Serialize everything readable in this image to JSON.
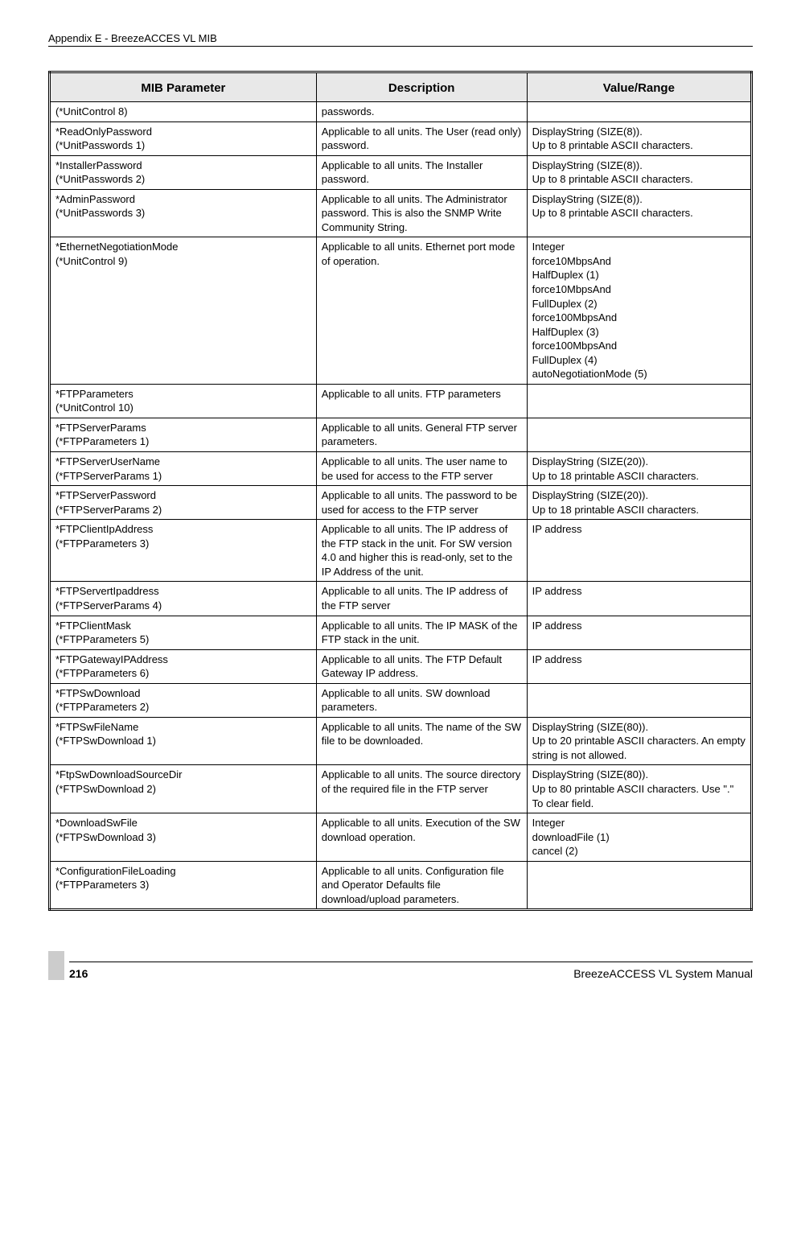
{
  "header": {
    "text": "Appendix E - BreezeACCES VL MIB"
  },
  "table": {
    "headers": [
      "MIB Parameter",
      "Description",
      "Value/Range"
    ],
    "rows": [
      {
        "param": "(*UnitControl 8)",
        "desc": "passwords.",
        "val": ""
      },
      {
        "param": "*ReadOnlyPassword\n(*UnitPasswords 1)",
        "desc": "Applicable to all units. The User (read only) password.",
        "val": "DisplayString (SIZE(8)).\nUp to 8 printable ASCII characters."
      },
      {
        "param": "*InstallerPassword\n(*UnitPasswords 2)",
        "desc": "Applicable to all units. The Installer password.",
        "val": "DisplayString (SIZE(8)).\nUp to 8 printable ASCII characters."
      },
      {
        "param": "*AdminPassword\n(*UnitPasswords 3)",
        "desc": "Applicable to all units. The Administrator password. This is also the SNMP Write Community String.",
        "val": "DisplayString (SIZE(8)).\nUp to 8 printable ASCII characters."
      },
      {
        "param": "*EthernetNegotiationMode\n(*UnitControl 9)",
        "desc": "Applicable to all units. Ethernet port mode of operation.",
        "val": "Integer\nforce10MbpsAnd\nHalfDuplex (1)\nforce10MbpsAnd\nFullDuplex (2)\nforce100MbpsAnd\nHalfDuplex (3)\nforce100MbpsAnd\nFullDuplex (4)\nautoNegotiationMode (5)"
      },
      {
        "param": "*FTPParameters\n(*UnitControl 10)",
        "desc": "Applicable to all units. FTP parameters",
        "val": ""
      },
      {
        "param": "*FTPServerParams\n(*FTPParameters 1)",
        "desc": "Applicable to all units. General FTP server parameters.",
        "val": ""
      },
      {
        "param": "*FTPServerUserName\n(*FTPServerParams 1)",
        "desc": "Applicable to all units. The user name to be used for access to the FTP server",
        "val": "DisplayString (SIZE(20)).\nUp to 18 printable ASCII characters."
      },
      {
        "param": "*FTPServerPassword\n(*FTPServerParams 2)",
        "desc": "Applicable to all units. The password to be used for access to the FTP server",
        "val": "DisplayString (SIZE(20)).\nUp to 18 printable ASCII characters."
      },
      {
        "param": "*FTPClientIpAddress\n(*FTPParameters 3)",
        "desc": "Applicable to all units. The IP address of the FTP stack in the unit. For SW version 4.0 and higher this is read-only, set to the IP Address of the unit.",
        "val": "IP address"
      },
      {
        "param": "*FTPServertIpaddress\n(*FTPServerParams 4)",
        "desc": "Applicable to all units. The IP address of the FTP server",
        "val": "IP address"
      },
      {
        "param": "*FTPClientMask\n(*FTPParameters 5)",
        "desc": "Applicable to all units. The IP MASK of the FTP stack in the unit.",
        "val": "IP address"
      },
      {
        "param": "*FTPGatewayIPAddress\n(*FTPParameters 6)",
        "desc": "Applicable to all units. The FTP Default Gateway IP address.",
        "val": "IP address"
      },
      {
        "param": "*FTPSwDownload\n(*FTPParameters 2)",
        "desc": "Applicable to all units. SW download parameters.",
        "val": ""
      },
      {
        "param": "*FTPSwFileName\n(*FTPSwDownload 1)",
        "desc": "Applicable to all units. The name of the SW file to be downloaded.",
        "val": "DisplayString (SIZE(80)).\nUp to 20 printable ASCII characters. An empty string is not allowed."
      },
      {
        "param": "*FtpSwDownloadSourceDir\n(*FTPSwDownload 2)",
        "desc": "Applicable to all units. The source directory of the required file in the FTP server",
        "val": "DisplayString (SIZE(80)).\nUp to 80 printable ASCII characters. Use \".\" To clear field."
      },
      {
        "param": "*DownloadSwFile\n(*FTPSwDownload 3)",
        "desc": "Applicable to all units. Execution of the SW download operation.",
        "val": "Integer\ndownloadFile (1)\ncancel (2)"
      },
      {
        "param": "*ConfigurationFileLoading\n(*FTPParameters 3)",
        "desc": "Applicable to all units. Configuration file and Operator Defaults file download/upload parameters.",
        "val": ""
      }
    ]
  },
  "footer": {
    "page": "216",
    "manual": "BreezeACCESS VL System Manual"
  }
}
